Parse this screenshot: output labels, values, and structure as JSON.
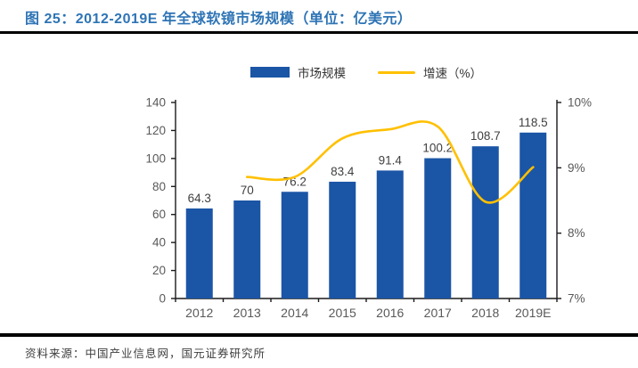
{
  "header": {
    "title": "图 25：2012-2019E 年全球软镜市场规模（单位：亿美元）"
  },
  "footer": {
    "source": "资料来源：中国产业信息网，国元证券研究所"
  },
  "colors": {
    "bar": "#1B55A6",
    "line": "#FFC000",
    "title": "#2E74B5",
    "axis": "#1a1a1a",
    "tick_label": "#595959",
    "value_label": "#404040",
    "rule": "#000000"
  },
  "chart_data": {
    "type": "bar+line",
    "title": "2012-2019E 年全球软镜市场规模",
    "unit": "亿美元",
    "categories": [
      "2012",
      "2013",
      "2014",
      "2015",
      "2016",
      "2017",
      "2018",
      "2019E"
    ],
    "series": [
      {
        "name": "市场规模",
        "type": "bar",
        "axis": "left",
        "values": [
          64.3,
          70,
          76.2,
          83.4,
          91.4,
          100.2,
          108.7,
          118.5
        ],
        "labels": [
          "64.3",
          "70",
          "76.2",
          "83.4",
          "91.4",
          "100.2",
          "108.7",
          "118.5"
        ]
      },
      {
        "name": "增速（%）",
        "type": "line",
        "axis": "right",
        "values": [
          null,
          8.86,
          8.86,
          9.45,
          9.59,
          9.63,
          8.48,
          9.01
        ]
      }
    ],
    "left_axis": {
      "min": 0,
      "max": 140,
      "step": 20,
      "tick_labels": [
        "0",
        "20",
        "40",
        "60",
        "80",
        "100",
        "120",
        "140"
      ]
    },
    "right_axis": {
      "min": 7,
      "max": 10,
      "step": 1,
      "tick_labels": [
        "7%",
        "8%",
        "9%",
        "10%"
      ]
    },
    "legend": [
      {
        "label": "市场规模",
        "marker": "bar"
      },
      {
        "label": "增速（%）",
        "marker": "line"
      }
    ],
    "grid": false,
    "legend_position": "top-center"
  }
}
